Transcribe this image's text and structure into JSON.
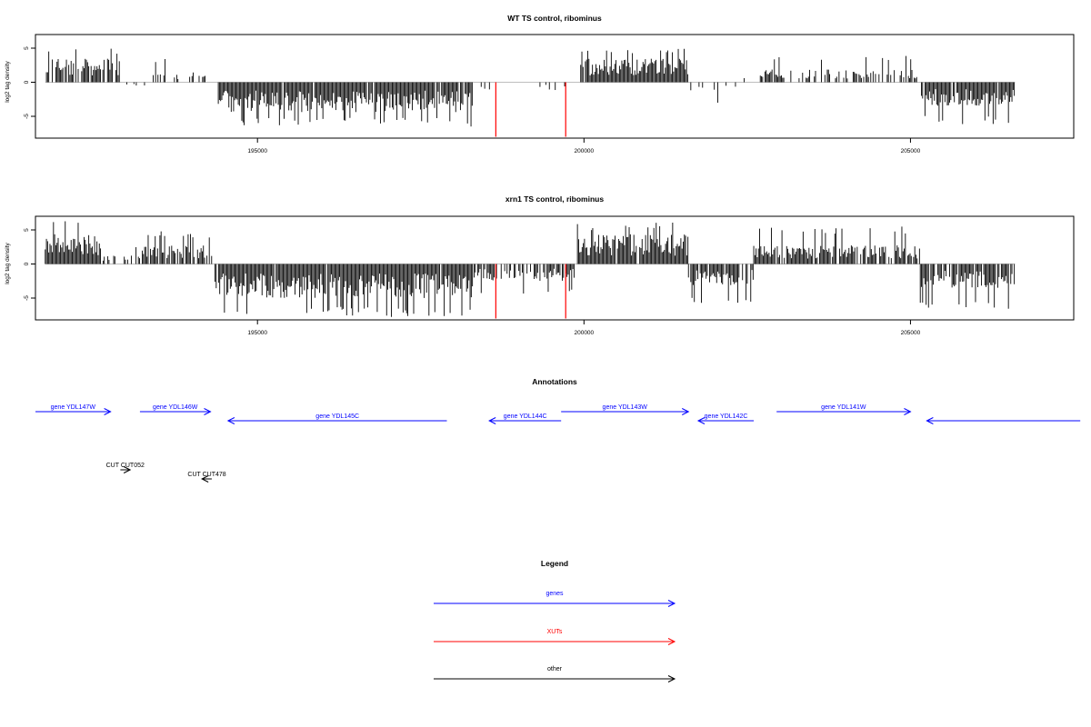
{
  "colors": {
    "gene": "#0000ff",
    "xut": "#ff0000",
    "other": "#000000",
    "axis": "#000000",
    "signal": "#000000",
    "baseline": "#bebebe"
  },
  "chart_data": [
    {
      "type": "bar",
      "title": "WT TS control, ribominus",
      "ylabel": "log2 tag density",
      "xlim": [
        191600,
        207500
      ],
      "ylim": [
        -8.2,
        7
      ],
      "xticks": [
        195000,
        200000,
        205000
      ],
      "xtick_labels": [
        "195000",
        "200000",
        "205000"
      ],
      "yticks": [
        5,
        0,
        -5
      ],
      "ytick_labels": [
        "5",
        "0",
        "-5"
      ],
      "red_spikes": [
        {
          "x": 198650,
          "y": -8
        },
        {
          "x": 199720,
          "y": -8
        }
      ],
      "segments": [
        {
          "x0": 191750,
          "x1": 192900,
          "sign": 1,
          "level": 2.8,
          "peak": 5,
          "density": 0.75
        },
        {
          "x0": 193000,
          "x1": 193350,
          "sign": -1,
          "level": 0.4,
          "peak": 0.8,
          "density": 0.15
        },
        {
          "x0": 193350,
          "x1": 194350,
          "sign": 1,
          "level": 1.2,
          "peak": 3.5,
          "density": 0.3
        },
        {
          "x0": 194400,
          "x1": 198300,
          "sign": -1,
          "level": 3.5,
          "peak": 6.5,
          "density": 0.95
        },
        {
          "x0": 198300,
          "x1": 199800,
          "sign": -1,
          "level": 1.0,
          "peak": 3,
          "density": 0.15
        },
        {
          "x0": 199950,
          "x1": 201600,
          "sign": 1,
          "level": 2.8,
          "peak": 5,
          "density": 0.95
        },
        {
          "x0": 201600,
          "x1": 202400,
          "sign": -1,
          "level": 1.2,
          "peak": 3.5,
          "density": 0.2
        },
        {
          "x0": 202400,
          "x1": 202700,
          "sign": 1,
          "level": 0.6,
          "peak": 1.5,
          "density": 0.1
        },
        {
          "x0": 202700,
          "x1": 205150,
          "sign": 1,
          "level": 1.5,
          "peak": 4,
          "density": 0.45
        },
        {
          "x0": 205150,
          "x1": 206600,
          "sign": -1,
          "level": 2.8,
          "peak": 6.2,
          "density": 0.9
        }
      ]
    },
    {
      "type": "bar",
      "title": "xrn1 TS control, ribominus",
      "ylabel": "log2 tag density",
      "xlim": [
        191600,
        207500
      ],
      "ylim": [
        -8.2,
        7
      ],
      "xticks": [
        195000,
        200000,
        205000
      ],
      "xtick_labels": [
        "195000",
        "200000",
        "205000"
      ],
      "yticks": [
        5,
        0,
        -5
      ],
      "ytick_labels": [
        "5",
        "0",
        "-5"
      ],
      "red_spikes": [
        {
          "x": 198650,
          "y": -8
        },
        {
          "x": 199720,
          "y": -8
        }
      ],
      "segments": [
        {
          "x0": 191750,
          "x1": 192600,
          "sign": 1,
          "level": 3.5,
          "peak": 6.5,
          "density": 0.95
        },
        {
          "x0": 192600,
          "x1": 193200,
          "sign": 1,
          "level": 1.0,
          "peak": 2.5,
          "density": 0.45
        },
        {
          "x0": 193200,
          "x1": 194300,
          "sign": 1,
          "level": 2.2,
          "peak": 4.8,
          "density": 0.75
        },
        {
          "x0": 194350,
          "x1": 198300,
          "sign": -1,
          "level": 4.0,
          "peak": 7.8,
          "density": 0.98
        },
        {
          "x0": 198300,
          "x1": 199850,
          "sign": -1,
          "level": 2.0,
          "peak": 4.5,
          "density": 0.7
        },
        {
          "x0": 199900,
          "x1": 201600,
          "sign": 1,
          "level": 3.5,
          "peak": 6.2,
          "density": 0.98
        },
        {
          "x0": 201600,
          "x1": 202600,
          "sign": -1,
          "level": 2.5,
          "peak": 6.0,
          "density": 0.8
        },
        {
          "x0": 202600,
          "x1": 205150,
          "sign": 1,
          "level": 2.2,
          "peak": 5.5,
          "density": 0.85
        },
        {
          "x0": 205150,
          "x1": 206600,
          "sign": -1,
          "level": 2.8,
          "peak": 6.6,
          "density": 0.85
        }
      ]
    }
  ],
  "annotations": {
    "title": "Annotations",
    "genes": [
      {
        "label": "gene YDL147W",
        "start": 191600,
        "end": 192750,
        "strand": "+",
        "row": 0
      },
      {
        "label": "gene YDL146W",
        "start": 193200,
        "end": 194280,
        "strand": "+",
        "row": 0
      },
      {
        "label": "gene YDL145C",
        "start": 194550,
        "end": 197900,
        "strand": "-",
        "row": 1
      },
      {
        "label": "gene YDL144C",
        "start": 198550,
        "end": 199650,
        "strand": "-",
        "row": 1
      },
      {
        "label": "gene YDL143W",
        "start": 199650,
        "end": 201600,
        "strand": "+",
        "row": 0
      },
      {
        "label": "gene YDL142C",
        "start": 201750,
        "end": 202600,
        "strand": "-",
        "row": 1
      },
      {
        "label": "gene YDL141W",
        "start": 202950,
        "end": 205000,
        "strand": "+",
        "row": 0
      },
      {
        "label": "",
        "start": 205250,
        "end": 207600,
        "strand": "-",
        "row": 1
      }
    ],
    "other": [
      {
        "label": "CUT CUT052",
        "start": 192900,
        "end": 193050,
        "strand": "+",
        "row": 0
      },
      {
        "label": "CUT CUT478",
        "start": 194150,
        "end": 194300,
        "strand": "-",
        "row": 1
      }
    ]
  },
  "legend": {
    "title": "Legend",
    "items": [
      {
        "label": "genes",
        "color": "#0000ff"
      },
      {
        "label": "XUTs",
        "color": "#ff0000"
      },
      {
        "label": "other",
        "color": "#000000"
      }
    ]
  }
}
